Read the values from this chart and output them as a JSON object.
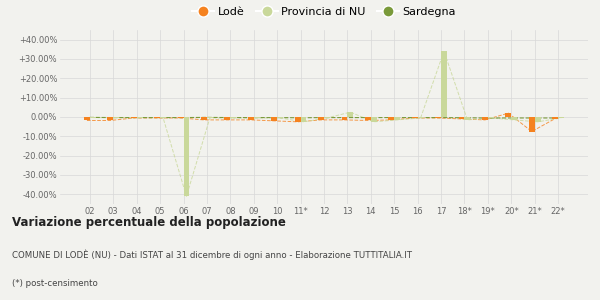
{
  "years": [
    "02",
    "03",
    "04",
    "05",
    "06",
    "07",
    "08",
    "09",
    "10",
    "11*",
    "12",
    "13",
    "14",
    "15",
    "16",
    "17",
    "18*",
    "19*",
    "20*",
    "21*",
    "22*"
  ],
  "lode": [
    -1.8,
    -1.8,
    -0.5,
    -0.5,
    -0.5,
    -1.5,
    -1.5,
    -1.5,
    -2.0,
    -2.5,
    -1.5,
    -1.5,
    -1.8,
    -1.5,
    -0.5,
    -0.5,
    -1.0,
    -1.5,
    2.0,
    -7.5,
    -0.8
  ],
  "provincia_nu": [
    -0.3,
    -0.3,
    -0.3,
    -0.3,
    -41.0,
    -0.5,
    -0.5,
    -0.5,
    -0.5,
    -2.5,
    -0.5,
    2.5,
    -2.5,
    -1.5,
    -0.5,
    34.0,
    -1.5,
    -0.5,
    -1.5,
    -2.5,
    -0.5
  ],
  "sardegna": [
    -0.2,
    -0.3,
    -0.3,
    -0.3,
    -0.3,
    -0.2,
    -0.3,
    -0.3,
    -0.3,
    -0.4,
    -0.3,
    -0.3,
    -0.3,
    -0.3,
    -0.3,
    -0.3,
    -0.4,
    -0.5,
    -0.5,
    -0.5,
    -0.5
  ],
  "lode_color": "#f5821f",
  "provincia_color": "#c9d89a",
  "sardegna_color": "#7a9a3a",
  "background_color": "#f2f2ee",
  "grid_color": "#d8d8d8",
  "ylim": [
    -45,
    45
  ],
  "yticks": [
    -40,
    -30,
    -20,
    -10,
    0,
    10,
    20,
    30,
    40
  ],
  "ytick_labels": [
    "-40.00%",
    "-30.00%",
    "-20.00%",
    "-10.00%",
    "0.00%",
    "+10.00%",
    "+20.00%",
    "+30.00%",
    "+40.00%"
  ],
  "title_bold": "Variazione percentuale della popolazione",
  "subtitle": "COMUNE DI LODÈ (NU) - Dati ISTAT al 31 dicembre di ogni anno - Elaborazione TUTTITALIA.IT",
  "footnote": "(*) post-censimento",
  "legend_labels": [
    "Lodè",
    "Provincia di NU",
    "Sardegna"
  ]
}
